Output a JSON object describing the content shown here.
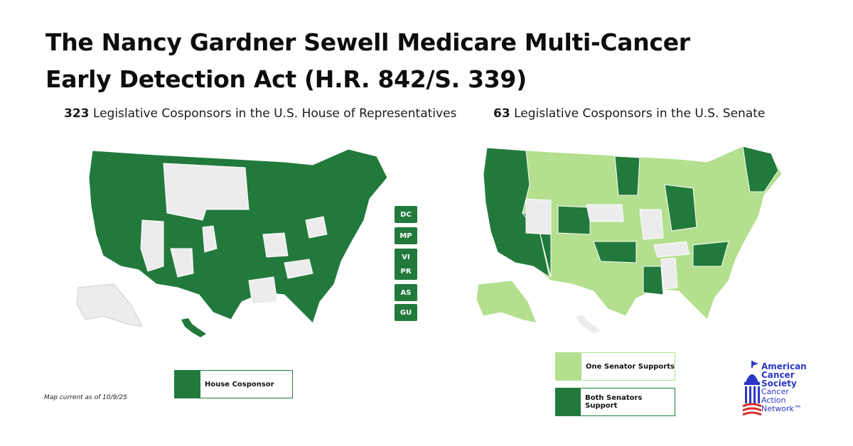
{
  "title": "The Nancy Gardner Sewell Medicare Multi-Cancer Early Detection Act (H.R. 842/S. 339)",
  "house": {
    "count": "323",
    "subtitle": "Legislative Cosponsors in the U.S. House of Representatives",
    "territories": [
      "DC",
      "MP",
      "VI",
      "PR",
      "AS",
      "GU"
    ],
    "legend_label": "House Cosponsor"
  },
  "senate": {
    "count": "63",
    "subtitle": "Legislative Cosponsors in the U.S. Senate",
    "legend_one": "One Senator Supports",
    "legend_both": "Both Senators Support"
  },
  "footnote": "Map current as of 10/9/25",
  "logo": {
    "line1": "American",
    "line2": "Cancer",
    "line3": "Society",
    "line4": "Cancer",
    "line5": "Action",
    "line6": "Network™"
  },
  "colors": {
    "dark_green": "#217a3c",
    "light_green": "#b3df8e",
    "gray": "#ececec",
    "brand_blue": "#2a37c6"
  }
}
